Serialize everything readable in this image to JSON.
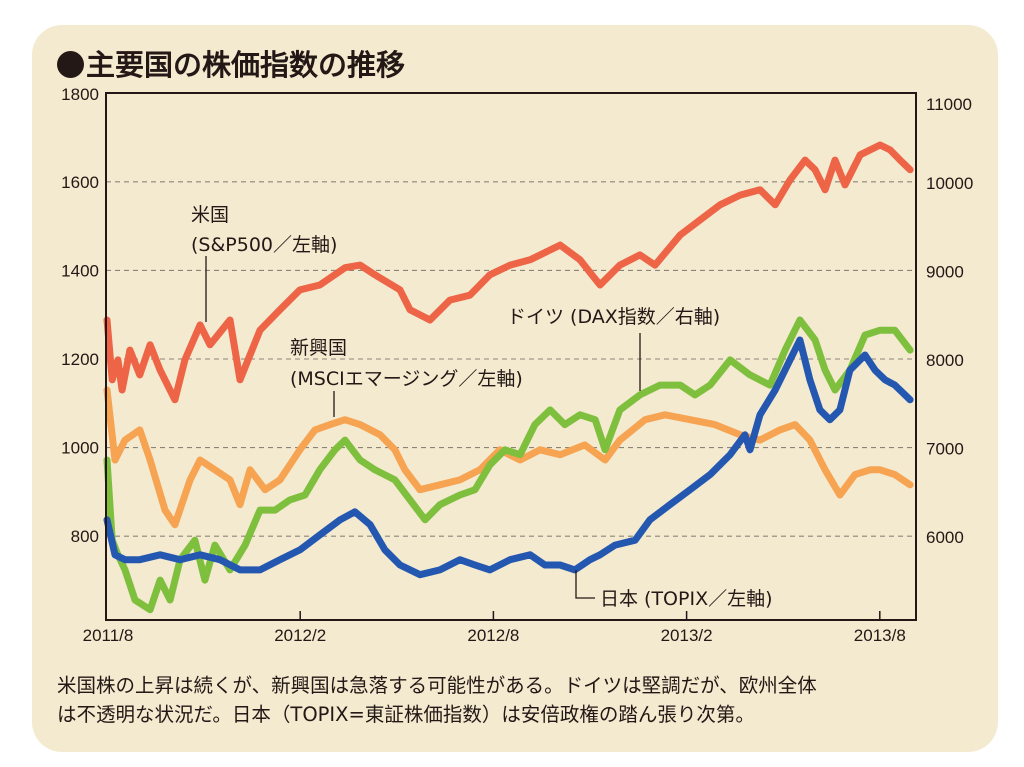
{
  "title": "主要国の株価指数の推移",
  "caption": {
    "line1": "米国株の上昇は続くが、新興国は急落する可能性がある。ドイツは堅調だが、欧州全体",
    "line2": "は不透明な状況だ。日本（TOPIX=東証株価指数）は安倍政権の踏ん張り次第。"
  },
  "chart_data": {
    "type": "line",
    "title": "主要国の株価指数の推移",
    "x_unit": "months since 2011/8",
    "xlim": [
      0,
      25.1
    ],
    "x_ticks": [
      {
        "label": "2011/8",
        "value": 0
      },
      {
        "label": "2012/2",
        "value": 6
      },
      {
        "label": "2012/8",
        "value": 12
      },
      {
        "label": "2013/2",
        "value": 18
      },
      {
        "label": "2013/8",
        "value": 24
      }
    ],
    "y_left": {
      "ylim": [
        615,
        1800
      ],
      "ticks": [
        "1800",
        "1600",
        "1400",
        "1200",
        "1000",
        "800"
      ],
      "tick_values": [
        1800,
        1600,
        1400,
        1200,
        1000,
        800
      ]
    },
    "y_right": {
      "ylim": [
        5075,
        11000
      ],
      "ticks": [
        "11000",
        "10000",
        "9000",
        "8000",
        "7000",
        "6000"
      ],
      "tick_values": [
        11000,
        10000,
        9000,
        8000,
        7000,
        6000
      ]
    },
    "grid": "dashed horizontal at 800–1600 (left)",
    "series": [
      {
        "name": "米国 (S&P500／左軸)",
        "label_line1": "米国",
        "label_line2": "(S&P500／左軸)",
        "axis": "left",
        "color": "#ee6446",
        "points": [
          [
            0,
            1288
          ],
          [
            0.16,
            1153
          ],
          [
            0.34,
            1198
          ],
          [
            0.47,
            1130
          ],
          [
            0.71,
            1220
          ],
          [
            1.02,
            1164
          ],
          [
            1.34,
            1232
          ],
          [
            1.65,
            1175
          ],
          [
            2.11,
            1108
          ],
          [
            2.42,
            1198
          ],
          [
            2.89,
            1277
          ],
          [
            3.2,
            1232
          ],
          [
            3.82,
            1288
          ],
          [
            4.13,
            1153
          ],
          [
            4.75,
            1265
          ],
          [
            5.37,
            1311
          ],
          [
            5.99,
            1356
          ],
          [
            6.61,
            1367
          ],
          [
            7.39,
            1406
          ],
          [
            7.86,
            1412
          ],
          [
            8.32,
            1390
          ],
          [
            9.1,
            1356
          ],
          [
            9.41,
            1311
          ],
          [
            10.03,
            1288
          ],
          [
            10.65,
            1333
          ],
          [
            11.27,
            1344
          ],
          [
            11.89,
            1390
          ],
          [
            12.52,
            1412
          ],
          [
            13.14,
            1424
          ],
          [
            14.07,
            1457
          ],
          [
            14.69,
            1424
          ],
          [
            15.31,
            1367
          ],
          [
            15.93,
            1412
          ],
          [
            16.55,
            1435
          ],
          [
            17.02,
            1412
          ],
          [
            17.8,
            1480
          ],
          [
            18.42,
            1514
          ],
          [
            19.04,
            1548
          ],
          [
            19.66,
            1570
          ],
          [
            20.28,
            1582
          ],
          [
            20.75,
            1548
          ],
          [
            21.21,
            1604
          ],
          [
            21.68,
            1649
          ],
          [
            21.99,
            1627
          ],
          [
            22.3,
            1582
          ],
          [
            22.61,
            1649
          ],
          [
            22.92,
            1593
          ],
          [
            23.39,
            1661
          ],
          [
            24.01,
            1683
          ],
          [
            24.32,
            1672
          ],
          [
            24.63,
            1649
          ],
          [
            24.94,
            1627
          ]
        ]
      },
      {
        "name": "新興国 (MSCIエマージング／左軸)",
        "label_line1": "新興国",
        "label_line2": "(MSCIエマージング／左軸)",
        "axis": "left",
        "color": "#f6a352",
        "points": [
          [
            0,
            1130
          ],
          [
            0.25,
            972
          ],
          [
            0.56,
            1017
          ],
          [
            1.02,
            1040
          ],
          [
            1.34,
            972
          ],
          [
            1.8,
            859
          ],
          [
            2.11,
            826
          ],
          [
            2.58,
            927
          ],
          [
            2.89,
            972
          ],
          [
            3.35,
            950
          ],
          [
            3.82,
            927
          ],
          [
            4.13,
            871
          ],
          [
            4.44,
            950
          ],
          [
            4.91,
            905
          ],
          [
            5.37,
            927
          ],
          [
            5.99,
            995
          ],
          [
            6.46,
            1040
          ],
          [
            6.93,
            1052
          ],
          [
            7.39,
            1063
          ],
          [
            7.86,
            1052
          ],
          [
            8.48,
            1029
          ],
          [
            8.94,
            995
          ],
          [
            9.25,
            950
          ],
          [
            9.72,
            905
          ],
          [
            10.34,
            916
          ],
          [
            10.96,
            927
          ],
          [
            11.58,
            950
          ],
          [
            12.2,
            995
          ],
          [
            12.83,
            972
          ],
          [
            13.45,
            995
          ],
          [
            14.07,
            984
          ],
          [
            14.84,
            1006
          ],
          [
            15.47,
            972
          ],
          [
            15.93,
            1017
          ],
          [
            16.71,
            1063
          ],
          [
            17.33,
            1074
          ],
          [
            18.11,
            1063
          ],
          [
            18.88,
            1052
          ],
          [
            19.66,
            1029
          ],
          [
            20.28,
            1017
          ],
          [
            20.9,
            1040
          ],
          [
            21.37,
            1052
          ],
          [
            21.83,
            1017
          ],
          [
            22.3,
            950
          ],
          [
            22.76,
            893
          ],
          [
            23.23,
            939
          ],
          [
            23.7,
            950
          ],
          [
            24.01,
            950
          ],
          [
            24.47,
            939
          ],
          [
            24.94,
            916
          ]
        ]
      },
      {
        "name": "ドイツ (DAX指数／右軸)",
        "label": "ドイツ (DAX指数／右軸)",
        "axis": "right",
        "color": "#7fbf3e",
        "points": [
          [
            0,
            6860
          ],
          [
            0.16,
            5955
          ],
          [
            0.34,
            5790
          ],
          [
            0.56,
            5620
          ],
          [
            0.87,
            5280
          ],
          [
            1.34,
            5170
          ],
          [
            1.65,
            5505
          ],
          [
            1.96,
            5280
          ],
          [
            2.27,
            5735
          ],
          [
            2.73,
            5955
          ],
          [
            3.04,
            5505
          ],
          [
            3.35,
            5900
          ],
          [
            3.82,
            5620
          ],
          [
            4.29,
            5900
          ],
          [
            4.75,
            6295
          ],
          [
            5.22,
            6295
          ],
          [
            5.68,
            6410
          ],
          [
            6.15,
            6465
          ],
          [
            6.61,
            6750
          ],
          [
            7.08,
            6975
          ],
          [
            7.39,
            7085
          ],
          [
            7.86,
            6860
          ],
          [
            8.32,
            6750
          ],
          [
            8.94,
            6635
          ],
          [
            9.41,
            6410
          ],
          [
            9.88,
            6185
          ],
          [
            10.34,
            6355
          ],
          [
            10.96,
            6465
          ],
          [
            11.43,
            6525
          ],
          [
            11.89,
            6805
          ],
          [
            12.36,
            6975
          ],
          [
            12.83,
            6920
          ],
          [
            13.29,
            7260
          ],
          [
            13.76,
            7425
          ],
          [
            14.22,
            7260
          ],
          [
            14.69,
            7370
          ],
          [
            15.16,
            7315
          ],
          [
            15.47,
            6975
          ],
          [
            15.93,
            7425
          ],
          [
            16.55,
            7595
          ],
          [
            17.17,
            7705
          ],
          [
            17.8,
            7705
          ],
          [
            18.26,
            7595
          ],
          [
            18.73,
            7705
          ],
          [
            19.35,
            7990
          ],
          [
            19.97,
            7820
          ],
          [
            20.59,
            7705
          ],
          [
            21.06,
            8100
          ],
          [
            21.52,
            8440
          ],
          [
            21.99,
            8215
          ],
          [
            22.3,
            7875
          ],
          [
            22.61,
            7650
          ],
          [
            23.07,
            7875
          ],
          [
            23.54,
            8270
          ],
          [
            24.01,
            8325
          ],
          [
            24.47,
            8325
          ],
          [
            24.94,
            8100
          ]
        ]
      },
      {
        "name": "日本 (TOPIX／左軸)",
        "label": "日本 (TOPIX／左軸)",
        "axis": "left",
        "color": "#2457b0",
        "points": [
          [
            0,
            837
          ],
          [
            0.25,
            758
          ],
          [
            0.56,
            747
          ],
          [
            1.02,
            747
          ],
          [
            1.65,
            758
          ],
          [
            2.27,
            747
          ],
          [
            2.89,
            758
          ],
          [
            3.51,
            747
          ],
          [
            4.13,
            724
          ],
          [
            4.75,
            724
          ],
          [
            5.37,
            747
          ],
          [
            5.99,
            769
          ],
          [
            6.61,
            803
          ],
          [
            7.24,
            837
          ],
          [
            7.7,
            855
          ],
          [
            8.17,
            826
          ],
          [
            8.63,
            769
          ],
          [
            9.1,
            735
          ],
          [
            9.72,
            713
          ],
          [
            10.34,
            724
          ],
          [
            10.96,
            747
          ],
          [
            11.43,
            735
          ],
          [
            11.89,
            724
          ],
          [
            12.52,
            747
          ],
          [
            13.14,
            758
          ],
          [
            13.6,
            735
          ],
          [
            14.07,
            735
          ],
          [
            14.53,
            724
          ],
          [
            15.0,
            747
          ],
          [
            15.31,
            758
          ],
          [
            15.78,
            780
          ],
          [
            16.4,
            791
          ],
          [
            16.86,
            837
          ],
          [
            17.48,
            871
          ],
          [
            18.11,
            905
          ],
          [
            18.73,
            939
          ],
          [
            19.35,
            984
          ],
          [
            19.81,
            1029
          ],
          [
            19.97,
            995
          ],
          [
            20.28,
            1074
          ],
          [
            20.75,
            1130
          ],
          [
            21.21,
            1198
          ],
          [
            21.52,
            1243
          ],
          [
            21.83,
            1153
          ],
          [
            22.14,
            1085
          ],
          [
            22.45,
            1063
          ],
          [
            22.76,
            1085
          ],
          [
            23.07,
            1175
          ],
          [
            23.54,
            1209
          ],
          [
            23.85,
            1175
          ],
          [
            24.16,
            1153
          ],
          [
            24.47,
            1141
          ],
          [
            24.94,
            1108
          ]
        ]
      }
    ]
  }
}
